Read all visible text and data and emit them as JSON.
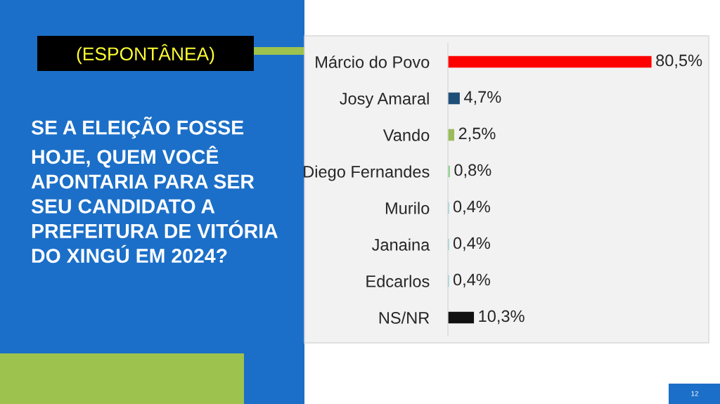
{
  "chart_data": {
    "type": "bar",
    "orientation": "horizontal",
    "title": "(ESPONTÂNEA)",
    "subtitle": "SE A ELEIÇÃO FOSSE\nHOJE, QUEM VOCÊ\nAPONTARIA PARA SER\nSEU CANDIDATO A\nPREFEITURA DE VITÓRIA\nDO XINGÚ EM 2024?",
    "categories": [
      "Márcio do Povo",
      "Josy Amaral",
      "Vando",
      "Diego Fernandes",
      "Murilo",
      "Janaina",
      "Edcarlos",
      "NS/NR"
    ],
    "values": [
      80.5,
      4.7,
      2.5,
      0.8,
      0.4,
      0.4,
      0.4,
      10.3
    ],
    "colors": [
      "#ff0000",
      "#1f4e79",
      "#9bbb59",
      "#8fd08a",
      "#5fc3cc",
      "#5fc3cc",
      "#5fc3cc",
      "#111111"
    ],
    "value_labels": [
      "80,5%",
      "4,7%",
      "2,5%",
      "0,8%",
      "0,4%",
      "0,4%",
      "0,4%",
      "10,3%"
    ],
    "tick_labels": "y",
    "annotations": [
      "12"
    ]
  }
}
